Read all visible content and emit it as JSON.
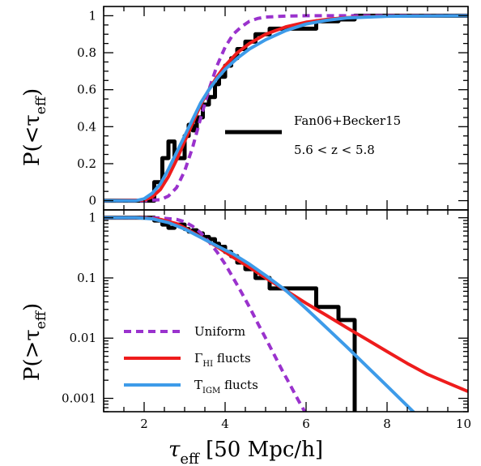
{
  "chart_data": [
    {
      "type": "line",
      "panel": "top",
      "ylabel": "P(<τ_eff)",
      "xlim": [
        1,
        10
      ],
      "ylim": [
        -0.05,
        1.05
      ],
      "x_ticks": [
        "2",
        "4",
        "6",
        "8",
        "10"
      ],
      "y_ticks": [
        "0",
        "0.2",
        "0.4",
        "0.6",
        "0.8",
        "1"
      ],
      "y_tick_values": [
        0,
        0.2,
        0.4,
        0.6,
        0.8,
        1
      ],
      "legend": {
        "label": "Fan06+Becker15",
        "note": "5.6 < z < 5.8"
      },
      "series": [
        {
          "name": "Fan06+Becker15",
          "color": "#000000",
          "style": "step",
          "x": [
            1.0,
            2.25,
            2.25,
            2.45,
            2.45,
            2.6,
            2.6,
            2.75,
            2.75,
            3.0,
            3.0,
            3.1,
            3.1,
            3.2,
            3.2,
            3.3,
            3.3,
            3.45,
            3.45,
            3.6,
            3.6,
            3.75,
            3.75,
            3.85,
            3.85,
            4.0,
            4.0,
            4.15,
            4.15,
            4.3,
            4.3,
            4.5,
            4.5,
            4.75,
            4.75,
            5.1,
            5.1,
            5.5,
            5.5,
            6.25,
            6.25,
            6.8,
            6.8,
            7.2,
            7.2,
            10.0
          ],
          "y": [
            0.0,
            0.0,
            0.1,
            0.1,
            0.23,
            0.23,
            0.32,
            0.32,
            0.23,
            0.23,
            0.35,
            0.35,
            0.41,
            0.41,
            0.38,
            0.38,
            0.45,
            0.45,
            0.52,
            0.52,
            0.56,
            0.56,
            0.63,
            0.63,
            0.67,
            0.67,
            0.73,
            0.73,
            0.77,
            0.77,
            0.82,
            0.82,
            0.86,
            0.86,
            0.9,
            0.9,
            0.93,
            0.93,
            0.93,
            0.93,
            0.97,
            0.97,
            0.98,
            0.98,
            1.0,
            1.0
          ]
        },
        {
          "name": "Uniform",
          "color": "#9a32cd",
          "style": "dashed",
          "x": [
            1.0,
            2.0,
            2.4,
            2.6,
            2.8,
            3.0,
            3.2,
            3.4,
            3.6,
            3.8,
            4.0,
            4.2,
            4.4,
            4.6,
            4.8,
            5.0,
            5.5,
            6.0,
            7.0,
            10.0
          ],
          "y": [
            0.0,
            0.0,
            0.005,
            0.025,
            0.07,
            0.16,
            0.29,
            0.45,
            0.6,
            0.73,
            0.83,
            0.9,
            0.94,
            0.97,
            0.985,
            0.993,
            0.998,
            1.0,
            1.0,
            1.0
          ]
        },
        {
          "name": "Γ_HI flucts",
          "color": "#ee1c1c",
          "style": "solid",
          "x": [
            1.0,
            2.0,
            2.2,
            2.4,
            2.6,
            2.8,
            3.0,
            3.2,
            3.4,
            3.6,
            3.8,
            4.0,
            4.3,
            4.6,
            5.0,
            5.5,
            6.0,
            6.5,
            7.0,
            8.0,
            10.0
          ],
          "y": [
            0.0,
            0.003,
            0.02,
            0.06,
            0.13,
            0.22,
            0.32,
            0.42,
            0.52,
            0.6,
            0.67,
            0.73,
            0.8,
            0.85,
            0.9,
            0.94,
            0.965,
            0.98,
            0.99,
            0.998,
            1.0
          ]
        },
        {
          "name": "T_IGM flucts",
          "color": "#3d9be9",
          "style": "solid",
          "x": [
            1.0,
            1.8,
            2.0,
            2.2,
            2.4,
            2.6,
            2.8,
            3.0,
            3.2,
            3.4,
            3.6,
            3.8,
            4.0,
            4.3,
            4.6,
            5.0,
            5.5,
            6.0,
            6.5,
            7.0,
            8.0,
            10.0
          ],
          "y": [
            0.0,
            0.0,
            0.01,
            0.04,
            0.09,
            0.17,
            0.26,
            0.35,
            0.44,
            0.53,
            0.6,
            0.66,
            0.71,
            0.77,
            0.82,
            0.87,
            0.92,
            0.955,
            0.975,
            0.988,
            0.997,
            1.0
          ]
        }
      ]
    },
    {
      "type": "line",
      "panel": "bottom",
      "log_y": true,
      "xlabel": "τ_eff [50 Mpc/h]",
      "ylabel": "P(>τ_eff)",
      "xlim": [
        1,
        10
      ],
      "ylim": [
        0.0006,
        1.35
      ],
      "x_ticks": [
        "2",
        "4",
        "6",
        "8",
        "10"
      ],
      "x_tick_values": [
        2,
        4,
        6,
        8,
        10
      ],
      "y_ticks": [
        "0.001",
        "0.01",
        "0.1",
        "1"
      ],
      "y_tick_values": [
        0.001,
        0.01,
        0.1,
        1
      ],
      "series": [
        {
          "name": "Fan06+Becker15",
          "color": "#000000",
          "style": "step",
          "x": [
            1.0,
            2.25,
            2.25,
            2.45,
            2.45,
            2.6,
            2.6,
            2.75,
            2.75,
            3.0,
            3.0,
            3.1,
            3.1,
            3.2,
            3.2,
            3.3,
            3.3,
            3.45,
            3.45,
            3.6,
            3.6,
            3.75,
            3.75,
            3.85,
            3.85,
            4.0,
            4.0,
            4.15,
            4.15,
            4.3,
            4.3,
            4.5,
            4.5,
            4.75,
            4.75,
            5.1,
            5.1,
            5.5,
            5.5,
            6.25,
            6.25,
            6.8,
            6.8,
            7.2,
            7.2,
            7.2
          ],
          "y": [
            1.0,
            1.0,
            0.9,
            0.9,
            0.77,
            0.77,
            0.68,
            0.68,
            0.77,
            0.77,
            0.65,
            0.65,
            0.59,
            0.59,
            0.62,
            0.62,
            0.55,
            0.55,
            0.48,
            0.48,
            0.44,
            0.44,
            0.37,
            0.37,
            0.33,
            0.33,
            0.27,
            0.27,
            0.23,
            0.23,
            0.18,
            0.18,
            0.14,
            0.14,
            0.1,
            0.1,
            0.067,
            0.067,
            0.067,
            0.067,
            0.033,
            0.033,
            0.02,
            0.02,
            0.0006,
            0.0006
          ]
        },
        {
          "name": "Uniform",
          "color": "#9a32cd",
          "style": "dashed",
          "x": [
            1.0,
            2.0,
            2.4,
            2.8,
            3.0,
            3.2,
            3.4,
            3.6,
            3.8,
            4.0,
            4.2,
            4.4,
            4.6,
            4.8,
            5.0,
            5.2,
            5.4,
            5.6,
            5.8,
            6.0,
            6.1
          ],
          "y": [
            1.0,
            1.0,
            0.99,
            0.94,
            0.86,
            0.72,
            0.56,
            0.4,
            0.27,
            0.17,
            0.1,
            0.058,
            0.033,
            0.018,
            0.01,
            0.0055,
            0.003,
            0.0017,
            0.00095,
            0.00055,
            0.0004
          ]
        },
        {
          "name": "Γ_HI flucts",
          "color": "#ee1c1c",
          "style": "solid",
          "x": [
            1.0,
            2.0,
            2.4,
            2.8,
            3.0,
            3.4,
            3.8,
            4.2,
            4.6,
            5.0,
            5.5,
            6.0,
            6.5,
            7.0,
            7.5,
            8.0,
            8.5,
            9.0,
            9.5,
            10.0
          ],
          "y": [
            1.0,
            0.997,
            0.94,
            0.8,
            0.68,
            0.48,
            0.33,
            0.22,
            0.15,
            0.1,
            0.062,
            0.038,
            0.024,
            0.015,
            0.0095,
            0.006,
            0.0038,
            0.0025,
            0.0018,
            0.0013
          ]
        },
        {
          "name": "T_IGM flucts",
          "color": "#3d9be9",
          "style": "solid",
          "x": [
            1.0,
            1.8,
            2.2,
            2.6,
            3.0,
            3.4,
            3.8,
            4.2,
            4.6,
            5.0,
            5.5,
            6.0,
            6.5,
            7.0,
            7.5,
            8.0,
            8.5,
            9.0
          ],
          "y": [
            1.0,
            1.0,
            0.96,
            0.83,
            0.65,
            0.47,
            0.34,
            0.25,
            0.17,
            0.11,
            0.062,
            0.031,
            0.015,
            0.0072,
            0.0034,
            0.0016,
            0.00075,
            0.00035
          ]
        }
      ]
    }
  ],
  "legend": {
    "items": [
      {
        "label_main": "Uniform",
        "label_sub": "",
        "label_tail": "",
        "color": "#9a32cd",
        "style": "dashed"
      },
      {
        "label_main": "Γ",
        "label_sub": "HI",
        "label_tail": " flucts",
        "color": "#ee1c1c",
        "style": "solid"
      },
      {
        "label_main": "T",
        "label_sub": "IGM",
        "label_tail": " flucts",
        "color": "#3d9be9",
        "style": "solid"
      }
    ]
  },
  "labels": {
    "top_ylabel_main": "P(<τ",
    "top_ylabel_sub": "eff",
    "top_ylabel_tail": ")",
    "bottom_ylabel_main": "P(>τ",
    "bottom_ylabel_sub": "eff",
    "bottom_ylabel_tail": ")",
    "xlabel_main": "τ",
    "xlabel_sub": "eff",
    "xlabel_tail": " [50 Mpc/h]",
    "top_legend_label": "Fan06+Becker15",
    "top_legend_note": "5.6 < z < 5.8"
  }
}
